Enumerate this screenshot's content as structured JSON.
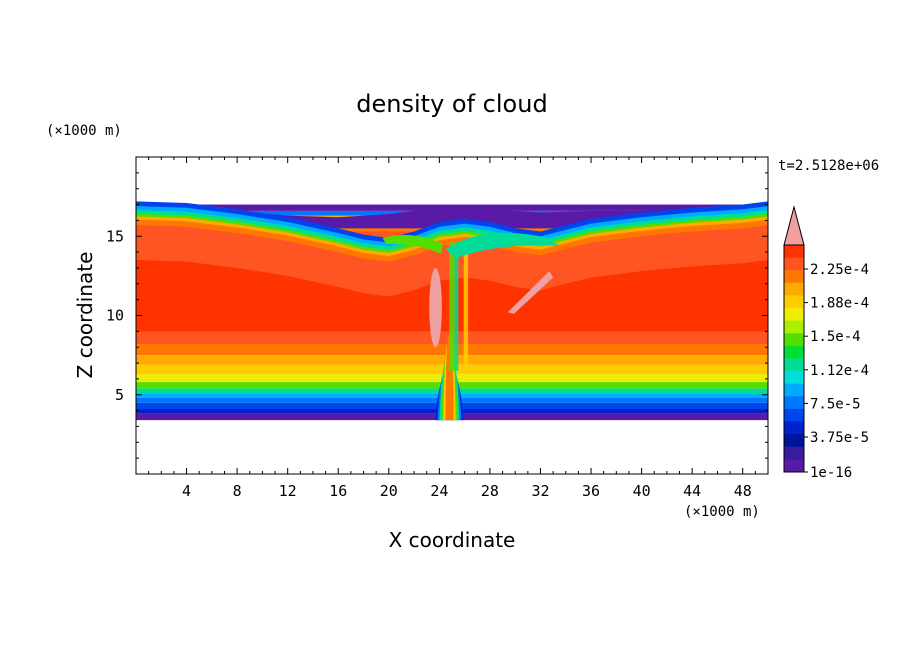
{
  "chart_data": {
    "type": "heatmap",
    "title": "density of cloud",
    "xlabel": "X coordinate",
    "ylabel": "Z coordinate",
    "x_unit": "(×1000 m)",
    "y_unit": "(×1000 m)",
    "time_label": "t=2.5128e+06",
    "xlim": [
      0,
      50
    ],
    "ylim": [
      0,
      20
    ],
    "x_ticks": [
      4,
      8,
      12,
      16,
      20,
      24,
      28,
      32,
      36,
      40,
      44,
      48
    ],
    "y_ticks": [
      5,
      10,
      15
    ],
    "colorbar": {
      "labels": [
        "2.25e-4",
        "1.88e-4",
        "1.5e-4",
        "1.12e-4",
        "7.5e-5",
        "3.75e-5",
        "1e-16"
      ],
      "colors": [
        "#ff3300",
        "#ff5522",
        "#ff7700",
        "#ffaa00",
        "#ffcc00",
        "#eeee00",
        "#aaee00",
        "#55dd00",
        "#00dd33",
        "#00dd99",
        "#00dddd",
        "#00aaff",
        "#0077ff",
        "#0044ee",
        "#0022cc",
        "#001499",
        "#3a1a9e",
        "#5a1aa8"
      ],
      "extend_color": "#f0a0a0"
    },
    "field": {
      "base_bands": [
        {
          "z": [
            3.4,
            3.8
          ],
          "color": "#5a1aa8"
        },
        {
          "z": [
            3.8,
            4.1
          ],
          "color": "#0022cc"
        },
        {
          "z": [
            4.1,
            4.5
          ],
          "color": "#0044ee"
        },
        {
          "z": [
            4.5,
            4.8
          ],
          "color": "#0077ff"
        },
        {
          "z": [
            4.8,
            5.1
          ],
          "color": "#00aaff"
        },
        {
          "z": [
            5.1,
            5.4
          ],
          "color": "#00dd99"
        },
        {
          "z": [
            5.4,
            5.8
          ],
          "color": "#55dd00"
        },
        {
          "z": [
            5.8,
            6.3
          ],
          "color": "#eeee00"
        },
        {
          "z": [
            6.3,
            6.9
          ],
          "color": "#ffcc00"
        },
        {
          "z": [
            6.9,
            7.5
          ],
          "color": "#ffaa00"
        },
        {
          "z": [
            7.5,
            8.2
          ],
          "color": "#ff7700"
        },
        {
          "z": [
            8.2,
            9.0
          ],
          "color": "#ff5522"
        },
        {
          "z": [
            9.0,
            13.5
          ],
          "color": "#ff3300"
        },
        {
          "z": [
            13.5,
            15.3
          ],
          "color": "#ff5522"
        },
        {
          "z": [
            15.3,
            16.0
          ],
          "color": "#ff7700"
        },
        {
          "z": [
            16.0,
            16.3
          ],
          "color": "#ffaa00"
        },
        {
          "z": [
            16.3,
            16.6
          ],
          "color": "#0077ff"
        },
        {
          "z": [
            16.6,
            17.0
          ],
          "color": "#5a1aa8"
        }
      ],
      "cloud_top_profile": {
        "x": [
          0,
          4,
          8,
          12,
          16,
          18,
          20,
          22,
          24,
          26,
          28,
          30,
          32,
          34,
          36,
          40,
          44,
          48,
          50
        ],
        "z": [
          16.3,
          16.2,
          15.8,
          15.3,
          14.6,
          14.2,
          14.0,
          14.4,
          15.0,
          15.2,
          15.0,
          14.6,
          14.4,
          14.8,
          15.2,
          15.6,
          15.9,
          16.1,
          16.3
        ]
      },
      "anvil_top_profile": {
        "x": [
          0,
          8,
          12,
          16,
          20,
          24,
          28,
          32,
          36,
          40,
          44,
          48,
          50
        ],
        "z": [
          16.8,
          16.6,
          16.3,
          16.2,
          16.4,
          16.8,
          16.7,
          16.5,
          16.6,
          16.6,
          16.7,
          16.8,
          16.9
        ]
      },
      "updraft": {
        "x_center": 24.8,
        "x_width": 2.2,
        "z_bottom": 3.4,
        "z_top": 15.2
      },
      "max_region_1": {
        "x": [
          23.2,
          24.2
        ],
        "z": [
          8.0,
          13.0
        ]
      },
      "max_region_2": {
        "x": [
          29.4,
          33.0
        ],
        "z": [
          10.2,
          12.8
        ]
      }
    }
  }
}
